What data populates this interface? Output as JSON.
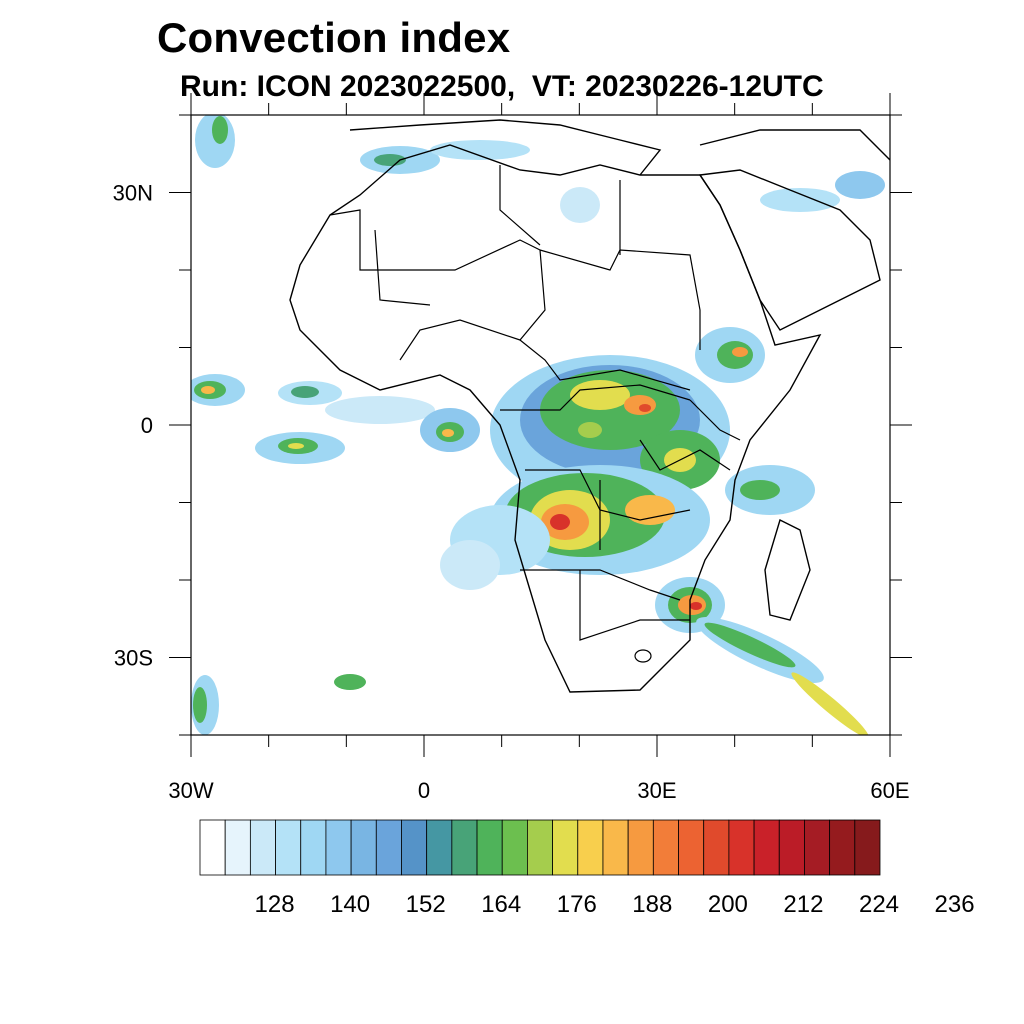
{
  "title": "Convection index",
  "subtitle": "Run: ICON 2023022500,  VT: 20230226-12UTC",
  "map": {
    "lon_range": [
      -30,
      60
    ],
    "lat_range": [
      -40,
      40
    ],
    "lon_ticks": [
      {
        "lon": -30,
        "label": "30W"
      },
      {
        "lon": 0,
        "label": "0"
      },
      {
        "lon": 30,
        "label": "30E"
      },
      {
        "lon": 60,
        "label": "60E"
      }
    ],
    "lat_ticks": [
      {
        "lat": 30,
        "label": "30N"
      },
      {
        "lat": 0,
        "label": "0"
      },
      {
        "lat": -30,
        "label": "30S"
      }
    ]
  },
  "colorbar": {
    "colors": [
      "#ffffff",
      "#e6f4fc",
      "#cbe9f8",
      "#b4e2f7",
      "#9fd7f3",
      "#8ec8ee",
      "#79b5e3",
      "#6aa4db",
      "#5593c8",
      "#4597a3",
      "#48a378",
      "#4fb35a",
      "#6cbf4f",
      "#a5cd4d",
      "#e2dd4e",
      "#f8cf4d",
      "#f9b84a",
      "#f69a40",
      "#f27d39",
      "#ec6332",
      "#e04a2c",
      "#d8322a",
      "#c92129",
      "#bb1c27",
      "#a51c24",
      "#951b1e",
      "#861a1c"
    ],
    "labels": [
      "128",
      "140",
      "152",
      "164",
      "176",
      "188",
      "200",
      "212",
      "224",
      "236"
    ]
  }
}
